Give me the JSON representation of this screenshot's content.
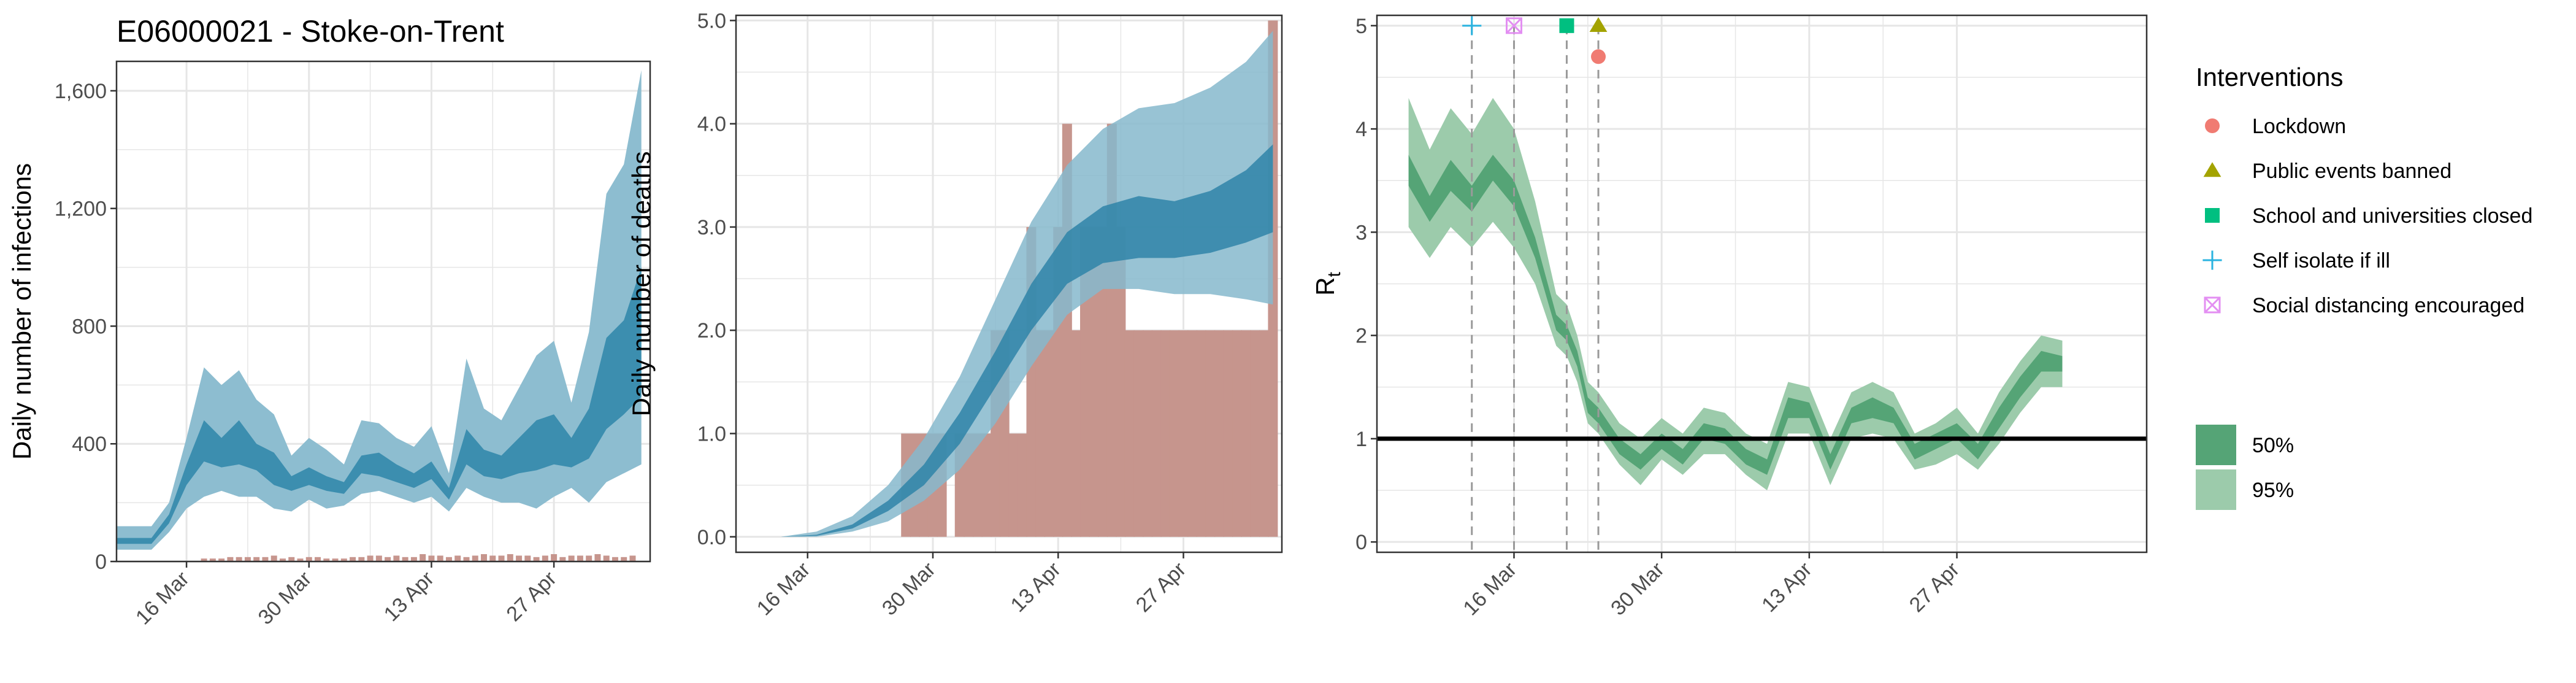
{
  "figure_title": "E06000021 - Stoke-on-Trent",
  "colors": {
    "infections_band95": "#8dbdd0",
    "infections_band50": "#3c8eaf",
    "deaths_band95": "#86b8cc",
    "deaths_band50": "#2f84a8",
    "observed_bars": "#c6958d",
    "rt_band95": "#9ccbab",
    "rt_band50": "#55a476",
    "rt_threshold_line": "#000000",
    "grid": "#e6e6e6",
    "lockdown": "#f07b72",
    "public_events_banned": "#a3a300",
    "schools_closed": "#00bf80",
    "self_isolate": "#2ab3e0",
    "social_distancing": "#e38ff2"
  },
  "chart_data": [
    {
      "id": "infections",
      "type": "area",
      "title": "E06000021 - Stoke-on-Trent",
      "xlabel": "",
      "ylabel": "Daily number of infections",
      "x_ticks": [
        "16 Mar",
        "30 Mar",
        "13 Apr",
        "27 Apr"
      ],
      "y_ticks": [
        "0",
        "400",
        "800",
        "1,200",
        "1,600"
      ],
      "ylim": [
        0,
        1700
      ],
      "x_start": "2020-03-08",
      "x_end": "2020-05-08",
      "grid": true,
      "series": [
        {
          "name": "95%",
          "dates": [
            "2020-03-08",
            "2020-03-12",
            "2020-03-14",
            "2020-03-16",
            "2020-03-18",
            "2020-03-20",
            "2020-03-22",
            "2020-03-24",
            "2020-03-26",
            "2020-03-28",
            "2020-03-30",
            "2020-04-01",
            "2020-04-03",
            "2020-04-05",
            "2020-04-07",
            "2020-04-09",
            "2020-04-11",
            "2020-04-13",
            "2020-04-15",
            "2020-04-17",
            "2020-04-19",
            "2020-04-21",
            "2020-04-23",
            "2020-04-25",
            "2020-04-27",
            "2020-04-29",
            "2020-05-01",
            "2020-05-03",
            "2020-05-05",
            "2020-05-07"
          ],
          "upper": [
            120,
            120,
            200,
            420,
            660,
            600,
            650,
            550,
            500,
            360,
            420,
            380,
            330,
            480,
            470,
            420,
            390,
            460,
            300,
            690,
            520,
            480,
            590,
            700,
            750,
            540,
            780,
            1250,
            1350,
            1670
          ],
          "lower": [
            40,
            40,
            100,
            180,
            220,
            240,
            220,
            220,
            180,
            170,
            210,
            180,
            190,
            230,
            240,
            220,
            200,
            220,
            170,
            250,
            220,
            200,
            200,
            180,
            220,
            250,
            200,
            270,
            300,
            330
          ]
        },
        {
          "name": "50%",
          "dates": [
            "2020-03-08",
            "2020-03-12",
            "2020-03-14",
            "2020-03-16",
            "2020-03-18",
            "2020-03-20",
            "2020-03-22",
            "2020-03-24",
            "2020-03-26",
            "2020-03-28",
            "2020-03-30",
            "2020-04-01",
            "2020-04-03",
            "2020-04-05",
            "2020-04-07",
            "2020-04-09",
            "2020-04-11",
            "2020-04-13",
            "2020-04-15",
            "2020-04-17",
            "2020-04-19",
            "2020-04-21",
            "2020-04-23",
            "2020-04-25",
            "2020-04-27",
            "2020-04-29",
            "2020-05-01",
            "2020-05-03",
            "2020-05-05",
            "2020-05-07"
          ],
          "upper": [
            80,
            80,
            160,
            330,
            480,
            420,
            480,
            400,
            370,
            290,
            320,
            290,
            270,
            360,
            370,
            330,
            300,
            340,
            250,
            450,
            380,
            360,
            420,
            480,
            500,
            420,
            520,
            760,
            820,
            1000
          ],
          "lower": [
            60,
            60,
            130,
            260,
            340,
            320,
            330,
            310,
            260,
            240,
            260,
            240,
            230,
            300,
            290,
            270,
            250,
            280,
            210,
            330,
            290,
            280,
            300,
            310,
            330,
            320,
            350,
            450,
            500,
            560
          ]
        }
      ],
      "observed": [
        10,
        10,
        10,
        15,
        15,
        15,
        15,
        15,
        20,
        10,
        15,
        10,
        15,
        15,
        10,
        10,
        10,
        15,
        15,
        20,
        20,
        15,
        20,
        15,
        15,
        25,
        20,
        20,
        15,
        20,
        15,
        20,
        25,
        20,
        20,
        25,
        20,
        20,
        15,
        20,
        25,
        15,
        20,
        20,
        20,
        25,
        20,
        15,
        15,
        20
      ]
    },
    {
      "id": "deaths",
      "type": "area",
      "xlabel": "",
      "ylabel": "Daily number of deaths",
      "x_ticks": [
        "16 Mar",
        "30 Mar",
        "13 Apr",
        "27 Apr"
      ],
      "y_ticks": [
        "0.0",
        "1.0",
        "2.0",
        "3.0",
        "4.0",
        "5.0"
      ],
      "ylim": [
        -0.15,
        5.05
      ],
      "x_start": "2020-03-08",
      "x_end": "2020-05-08",
      "grid": true,
      "series": [
        {
          "name": "95%",
          "dates": [
            "2020-03-13",
            "2020-03-17",
            "2020-03-21",
            "2020-03-25",
            "2020-03-29",
            "2020-04-02",
            "2020-04-06",
            "2020-04-10",
            "2020-04-14",
            "2020-04-18",
            "2020-04-22",
            "2020-04-26",
            "2020-04-30",
            "2020-05-04",
            "2020-05-07"
          ],
          "upper": [
            0.0,
            0.05,
            0.2,
            0.5,
            0.95,
            1.55,
            2.3,
            3.05,
            3.6,
            3.95,
            4.15,
            4.2,
            4.35,
            4.6,
            4.9
          ],
          "lower": [
            0.0,
            0.0,
            0.05,
            0.15,
            0.35,
            0.65,
            1.1,
            1.65,
            2.15,
            2.4,
            2.4,
            2.35,
            2.35,
            2.3,
            2.25
          ]
        },
        {
          "name": "50%",
          "dates": [
            "2020-03-13",
            "2020-03-17",
            "2020-03-21",
            "2020-03-25",
            "2020-03-29",
            "2020-04-02",
            "2020-04-06",
            "2020-04-10",
            "2020-04-14",
            "2020-04-18",
            "2020-04-22",
            "2020-04-26",
            "2020-04-30",
            "2020-05-04",
            "2020-05-07"
          ],
          "upper": [
            0.0,
            0.02,
            0.12,
            0.35,
            0.7,
            1.2,
            1.8,
            2.45,
            2.95,
            3.2,
            3.3,
            3.25,
            3.35,
            3.55,
            3.8
          ],
          "lower": [
            0.0,
            0.01,
            0.08,
            0.25,
            0.5,
            0.9,
            1.45,
            2.0,
            2.45,
            2.65,
            2.7,
            2.7,
            2.75,
            2.85,
            2.95
          ]
        }
      ],
      "observed_dates": [
        "2020-03-27",
        "2020-03-28",
        "2020-03-29",
        "2020-03-30",
        "2020-03-31",
        "2020-04-01",
        "2020-04-02",
        "2020-04-03",
        "2020-04-04",
        "2020-04-05",
        "2020-04-06",
        "2020-04-07",
        "2020-04-08",
        "2020-04-09",
        "2020-04-10",
        "2020-04-11",
        "2020-04-12",
        "2020-04-13",
        "2020-04-14",
        "2020-04-15",
        "2020-04-16",
        "2020-04-17",
        "2020-04-18",
        "2020-04-19",
        "2020-04-20",
        "2020-04-21",
        "2020-04-22",
        "2020-04-23",
        "2020-04-24",
        "2020-04-25",
        "2020-04-26",
        "2020-04-27",
        "2020-04-28",
        "2020-04-29",
        "2020-04-30",
        "2020-05-01",
        "2020-05-02",
        "2020-05-03",
        "2020-05-04",
        "2020-05-05",
        "2020-05-06",
        "2020-05-07"
      ],
      "observed": [
        1,
        1,
        1,
        1,
        1,
        0,
        1,
        1,
        1,
        1,
        2,
        2,
        1,
        1,
        3,
        2,
        2,
        3,
        4,
        2,
        3,
        3,
        3,
        4,
        3,
        2,
        2,
        2,
        2,
        2,
        2,
        2,
        2,
        2,
        2,
        2,
        2,
        2,
        2,
        2,
        2,
        5
      ]
    },
    {
      "id": "rt",
      "type": "area",
      "xlabel": "",
      "ylabel": "Rt",
      "ylabel_main": "R",
      "ylabel_sub": "t",
      "x_ticks": [
        "16 Mar",
        "30 Mar",
        "13 Apr",
        "27 Apr"
      ],
      "y_ticks": [
        "0",
        "1",
        "2",
        "3",
        "4",
        "5"
      ],
      "ylim": [
        -0.1,
        5.1
      ],
      "x_start": "2020-03-03",
      "x_end": "2020-05-15",
      "grid": true,
      "threshold": 1,
      "series": [
        {
          "name": "95%",
          "dates": [
            "2020-03-06",
            "2020-03-08",
            "2020-03-10",
            "2020-03-12",
            "2020-03-14",
            "2020-03-16",
            "2020-03-18",
            "2020-03-20",
            "2020-03-21",
            "2020-03-22",
            "2020-03-23",
            "2020-03-24",
            "2020-03-25",
            "2020-03-26",
            "2020-03-28",
            "2020-03-30",
            "2020-04-01",
            "2020-04-03",
            "2020-04-05",
            "2020-04-07",
            "2020-04-09",
            "2020-04-11",
            "2020-04-13",
            "2020-04-15",
            "2020-04-17",
            "2020-04-19",
            "2020-04-21",
            "2020-04-23",
            "2020-04-25",
            "2020-04-27",
            "2020-04-29",
            "2020-05-01",
            "2020-05-03",
            "2020-05-05",
            "2020-05-07"
          ],
          "upper": [
            4.3,
            3.8,
            4.2,
            3.95,
            4.3,
            4.0,
            3.3,
            2.4,
            2.3,
            2.0,
            1.55,
            1.45,
            1.3,
            1.15,
            1.0,
            1.2,
            1.05,
            1.3,
            1.25,
            1.05,
            0.95,
            1.55,
            1.5,
            1.0,
            1.45,
            1.55,
            1.45,
            1.05,
            1.15,
            1.3,
            1.05,
            1.45,
            1.75,
            2.0,
            1.95
          ],
          "lower": [
            3.05,
            2.75,
            3.05,
            2.85,
            3.1,
            2.85,
            2.5,
            1.9,
            1.8,
            1.55,
            1.15,
            1.05,
            0.9,
            0.75,
            0.55,
            0.8,
            0.65,
            0.85,
            0.85,
            0.65,
            0.5,
            1.05,
            1.05,
            0.55,
            1.0,
            1.05,
            1.0,
            0.7,
            0.75,
            0.85,
            0.7,
            0.95,
            1.25,
            1.5,
            1.5
          ]
        },
        {
          "name": "50%",
          "dates": [
            "2020-03-06",
            "2020-03-08",
            "2020-03-10",
            "2020-03-12",
            "2020-03-14",
            "2020-03-16",
            "2020-03-18",
            "2020-03-20",
            "2020-03-21",
            "2020-03-22",
            "2020-03-23",
            "2020-03-24",
            "2020-03-25",
            "2020-03-26",
            "2020-03-28",
            "2020-03-30",
            "2020-04-01",
            "2020-04-03",
            "2020-04-05",
            "2020-04-07",
            "2020-04-09",
            "2020-04-11",
            "2020-04-13",
            "2020-04-15",
            "2020-04-17",
            "2020-04-19",
            "2020-04-21",
            "2020-04-23",
            "2020-04-25",
            "2020-04-27",
            "2020-04-29",
            "2020-05-01",
            "2020-05-03",
            "2020-05-05",
            "2020-05-07"
          ],
          "upper": [
            3.75,
            3.35,
            3.7,
            3.45,
            3.75,
            3.5,
            2.95,
            2.2,
            2.1,
            1.85,
            1.4,
            1.3,
            1.15,
            1.0,
            0.85,
            1.05,
            0.9,
            1.15,
            1.1,
            0.9,
            0.8,
            1.4,
            1.35,
            0.85,
            1.3,
            1.4,
            1.3,
            0.95,
            1.05,
            1.15,
            0.95,
            1.3,
            1.6,
            1.85,
            1.8
          ],
          "lower": [
            3.45,
            3.1,
            3.4,
            3.2,
            3.5,
            3.25,
            2.75,
            2.05,
            1.95,
            1.7,
            1.25,
            1.15,
            1.0,
            0.85,
            0.7,
            0.9,
            0.75,
            1.0,
            0.95,
            0.75,
            0.65,
            1.2,
            1.2,
            0.7,
            1.15,
            1.2,
            1.15,
            0.8,
            0.9,
            1.0,
            0.8,
            1.1,
            1.4,
            1.65,
            1.65
          ]
        }
      ],
      "interventions": [
        {
          "label": "Self isolate if ill",
          "date": "2020-03-12",
          "y": 5.0,
          "shape": "plus",
          "color_key": "self_isolate"
        },
        {
          "label": "Social distancing encouraged",
          "date": "2020-03-16",
          "y": 5.0,
          "shape": "boxx",
          "color_key": "social_distancing"
        },
        {
          "label": "School and universities closed",
          "date": "2020-03-21",
          "y": 5.0,
          "shape": "square",
          "color_key": "schools_closed"
        },
        {
          "label": "Public events banned",
          "date": "2020-03-24",
          "y": 5.0,
          "shape": "triangle",
          "color_key": "public_events_banned"
        },
        {
          "label": "Lockdown",
          "date": "2020-03-24",
          "y": 4.7,
          "shape": "circle",
          "color_key": "lockdown"
        }
      ]
    }
  ],
  "legend": {
    "interventions_title": "Interventions",
    "interventions": [
      {
        "label": "Lockdown",
        "shape": "circle",
        "color_key": "lockdown"
      },
      {
        "label": "Public events banned",
        "shape": "triangle",
        "color_key": "public_events_banned"
      },
      {
        "label": "School and universities closed",
        "shape": "square",
        "color_key": "schools_closed"
      },
      {
        "label": "Self isolate if ill",
        "shape": "plus",
        "color_key": "self_isolate"
      },
      {
        "label": "Social distancing encouraged",
        "shape": "boxx",
        "color_key": "social_distancing"
      }
    ],
    "bands": [
      {
        "label": "50%",
        "color_key": "rt_band50"
      },
      {
        "label": "95%",
        "color_key": "rt_band95"
      }
    ]
  }
}
